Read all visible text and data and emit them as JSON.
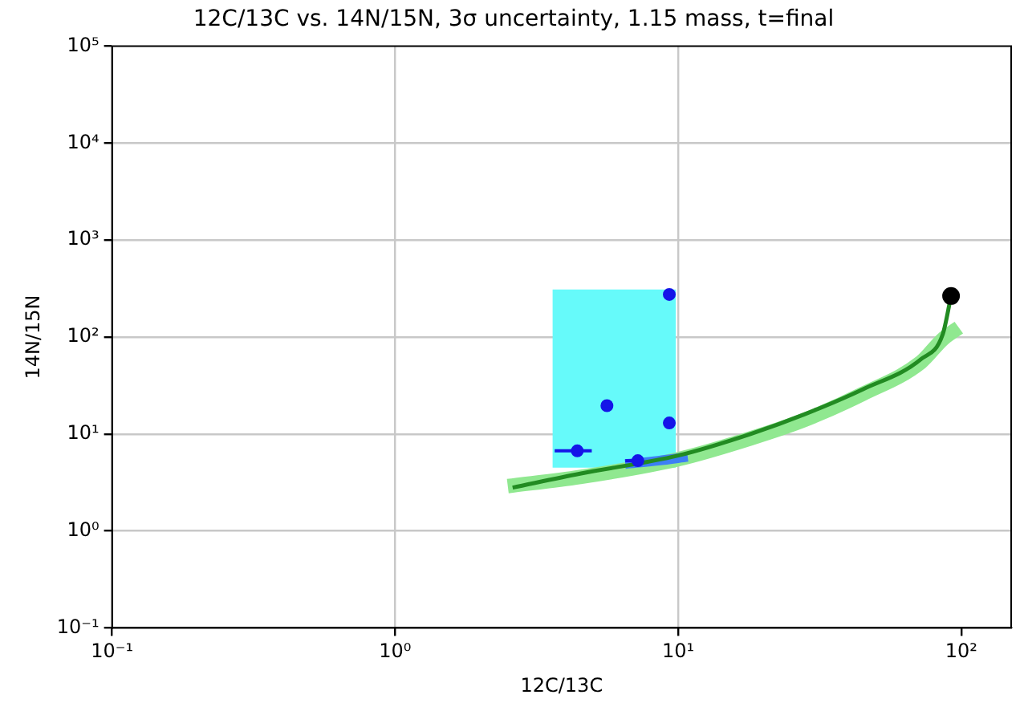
{
  "chart_data": {
    "type": "line",
    "title": "12C/13C vs. 14N/15N, 3σ uncertainty, 1.15 mass, t=final",
    "xlabel": "12C/13C",
    "ylabel": "14N/15N",
    "log": "xy",
    "grid": true,
    "legend": false,
    "xlim": [
      0.1,
      150
    ],
    "ylim": [
      0.1,
      100000
    ],
    "xticks": [
      {
        "value": 0.1,
        "label": "10⁻¹"
      },
      {
        "value": 1,
        "label": "10⁰"
      },
      {
        "value": 10,
        "label": "10¹"
      },
      {
        "value": 100,
        "label": "10²"
      }
    ],
    "yticks": [
      {
        "value": 0.1,
        "label": "10⁻¹"
      },
      {
        "value": 1,
        "label": "10⁰"
      },
      {
        "value": 10,
        "label": "10¹"
      },
      {
        "value": 100,
        "label": "10²"
      },
      {
        "value": 1000,
        "label": "10³"
      },
      {
        "value": 10000,
        "label": "10⁴"
      },
      {
        "value": 100000,
        "label": "10⁵"
      }
    ],
    "series": [
      {
        "color": "#66fafa",
        "x": [
          3.6,
          9.8
        ],
        "values": [
          null,
          null
        ],
        "lower": [
          4.5,
          4.5
        ],
        "upper": [
          310,
          310
        ]
      },
      {
        "color": "#90e890",
        "x": [
          2.5,
          4.5,
          10,
          18,
          28,
          45,
          72,
          86,
          98
        ],
        "values": [
          2.9,
          3.6,
          5.5,
          9,
          14,
          26,
          55,
          95,
          125
        ]
      },
      {
        "color": "#3d7ff5",
        "x": [
          6.5,
          8.5,
          10.8
        ],
        "values": [
          4.9,
          5.3,
          5.8
        ]
      },
      {
        "type": "scatter",
        "color": "#1515e8",
        "marker": "circle",
        "x": [
          9.3,
          5.6,
          9.3,
          4.4,
          7.2
        ],
        "values": [
          275,
          19.6,
          13,
          6.7,
          5.3
        ],
        "xerrors": [
          null,
          [
            5.4,
            5.8
          ],
          null,
          [
            3.66,
            4.95
          ],
          [
            6.5,
            7.5
          ]
        ]
      },
      {
        "color": "#228b22",
        "x": [
          2.6,
          4.5,
          10,
          18,
          28,
          45,
          72,
          86,
          92
        ],
        "values": [
          2.8,
          3.9,
          6,
          10,
          16,
          29,
          59,
          107,
          265
        ]
      },
      {
        "type": "scatter",
        "color": "#000000",
        "marker": "circle",
        "x": [
          92
        ],
        "values": [
          265
        ]
      }
    ]
  }
}
